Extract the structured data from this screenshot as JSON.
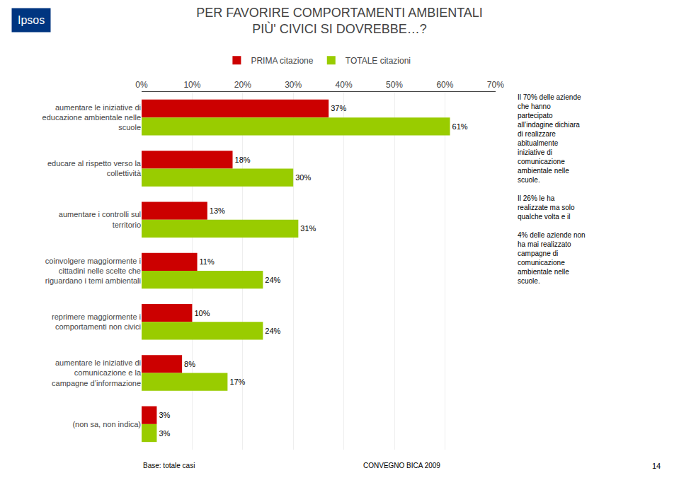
{
  "chart_data": {
    "type": "bar",
    "orientation": "horizontal",
    "title": "PER FAVORIRE COMPORTAMENTI AMBIENTALI\nPIÙ' CIVICI SI DOVREBBE…?",
    "categories": [
      "aumentare le iniziative di\neducazione ambientale nelle\nscuole",
      "educare al rispetto verso la\ncollettività",
      "aumentare i controlli sul\nterritorio",
      "coinvolgere maggiormente i\ncittadini nelle scelte che\nriguardano i temi ambientali",
      "reprimere maggiormente i\ncomportamenti non civici",
      "aumentare le iniziative di\ncomunicazione e la\ncampagne d’informazione",
      "(non sa, non indica)"
    ],
    "series": [
      {
        "name": "PRIMA citazione",
        "color": "#CC0000",
        "values": [
          37,
          18,
          13,
          11,
          10,
          8,
          3
        ],
        "value_labels": [
          "37%",
          "18%",
          "13%",
          "11%",
          "10%",
          "8%",
          "3%"
        ]
      },
      {
        "name": "TOTALE citazioni",
        "color": "#99CC00",
        "values": [
          61,
          30,
          31,
          24,
          24,
          17,
          3
        ],
        "value_labels": [
          "61%",
          "30%",
          "31%",
          "24%",
          "24%",
          "17%",
          "3%"
        ]
      }
    ],
    "xlim": [
      0,
      70
    ],
    "xticks": [
      {
        "value": 0,
        "label": "0%"
      },
      {
        "value": 10,
        "label": "10%"
      },
      {
        "value": 20,
        "label": "20%"
      },
      {
        "value": 30,
        "label": "30%"
      },
      {
        "value": 40,
        "label": "40%"
      },
      {
        "value": 50,
        "label": "50%"
      },
      {
        "value": 60,
        "label": "60%"
      },
      {
        "value": 70,
        "label": "70%"
      }
    ],
    "grid": true,
    "legend": "top",
    "data_labels": true,
    "annotations": [
      "Ipsos",
      "Il 70% delle aziende\nche hanno\npartecipato\nall’indagine dichiara\ndi realizzare\nabitualmente\niniziative di\ncomunicazione\nambientale nelle\nscuole.\n\nIl 26% le ha\nrealizzate ma solo\nqualche volta e il\n\n4% delle aziende non\nha mai realizzato\ncampagne di\ncomunicazione\nambientale nelle\nscuole.",
      "Base: totale casi",
      "CONVEGNO BICA 2009",
      "14"
    ]
  }
}
